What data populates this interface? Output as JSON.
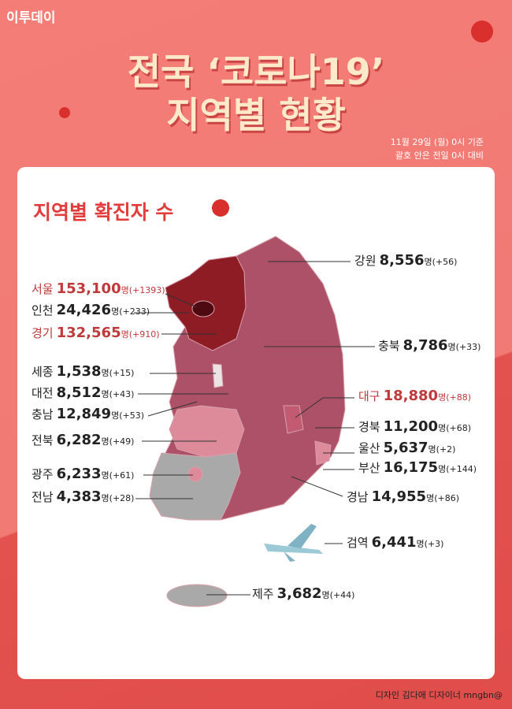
{
  "header": {
    "logo": "이투데이",
    "title_lines": [
      "전국 ‘코로나19’",
      "지역별 현황"
    ],
    "notes": [
      "11월 29일 (월) 0시 기준",
      "괄호 안은 전일 0시 대비"
    ]
  },
  "card": {
    "title": "지역별 확진자 수"
  },
  "regions": [
    {
      "name": "강원",
      "count": "8,556",
      "unit": "명",
      "change": "(+56)",
      "color": "#222222"
    },
    {
      "name": "서울",
      "count": "153,100",
      "unit": "명",
      "change": "(+1393)",
      "color": "#c0393b"
    },
    {
      "name": "인천",
      "count": "24,426",
      "unit": "명",
      "change": "(+233)",
      "color": "#222222"
    },
    {
      "name": "경기",
      "count": "132,565",
      "unit": "명",
      "change": "(+910)",
      "color": "#c0393b"
    },
    {
      "name": "충북",
      "count": "8,786",
      "unit": "명",
      "change": "(+33)",
      "color": "#222222"
    },
    {
      "name": "세종",
      "count": "1,538",
      "unit": "명",
      "change": "(+15)",
      "color": "#222222"
    },
    {
      "name": "대전",
      "count": "8,512",
      "unit": "명",
      "change": "(+43)",
      "color": "#222222"
    },
    {
      "name": "충남",
      "count": "12,849",
      "unit": "명",
      "change": "(+53)",
      "color": "#222222"
    },
    {
      "name": "대구",
      "count": "18,880",
      "unit": "명",
      "change": "(+88)",
      "color": "#c0393b"
    },
    {
      "name": "전북",
      "count": "6,282",
      "unit": "명",
      "change": "(+49)",
      "color": "#222222"
    },
    {
      "name": "경북",
      "count": "11,200",
      "unit": "명",
      "change": "(+68)",
      "color": "#222222"
    },
    {
      "name": "울산",
      "count": "5,637",
      "unit": "명",
      "change": "(+2)",
      "color": "#222222"
    },
    {
      "name": "부산",
      "count": "16,175",
      "unit": "명",
      "change": "(+144)",
      "color": "#222222"
    },
    {
      "name": "광주",
      "count": "6,233",
      "unit": "명",
      "change": "(+61)",
      "color": "#222222"
    },
    {
      "name": "전남",
      "count": "4,383",
      "unit": "명",
      "change": "(+28)",
      "color": "#222222"
    },
    {
      "name": "경남",
      "count": "14,955",
      "unit": "명",
      "change": "(+86)",
      "color": "#222222"
    },
    {
      "name": "검역",
      "count": "6,441",
      "unit": "명",
      "change": "(+3)",
      "color": "#222222"
    },
    {
      "name": "제주",
      "count": "3,682",
      "unit": "명",
      "change": "(+44)",
      "color": "#222222"
    }
  ],
  "footer": "디자인 김다애 디자이너 mngbn@"
}
